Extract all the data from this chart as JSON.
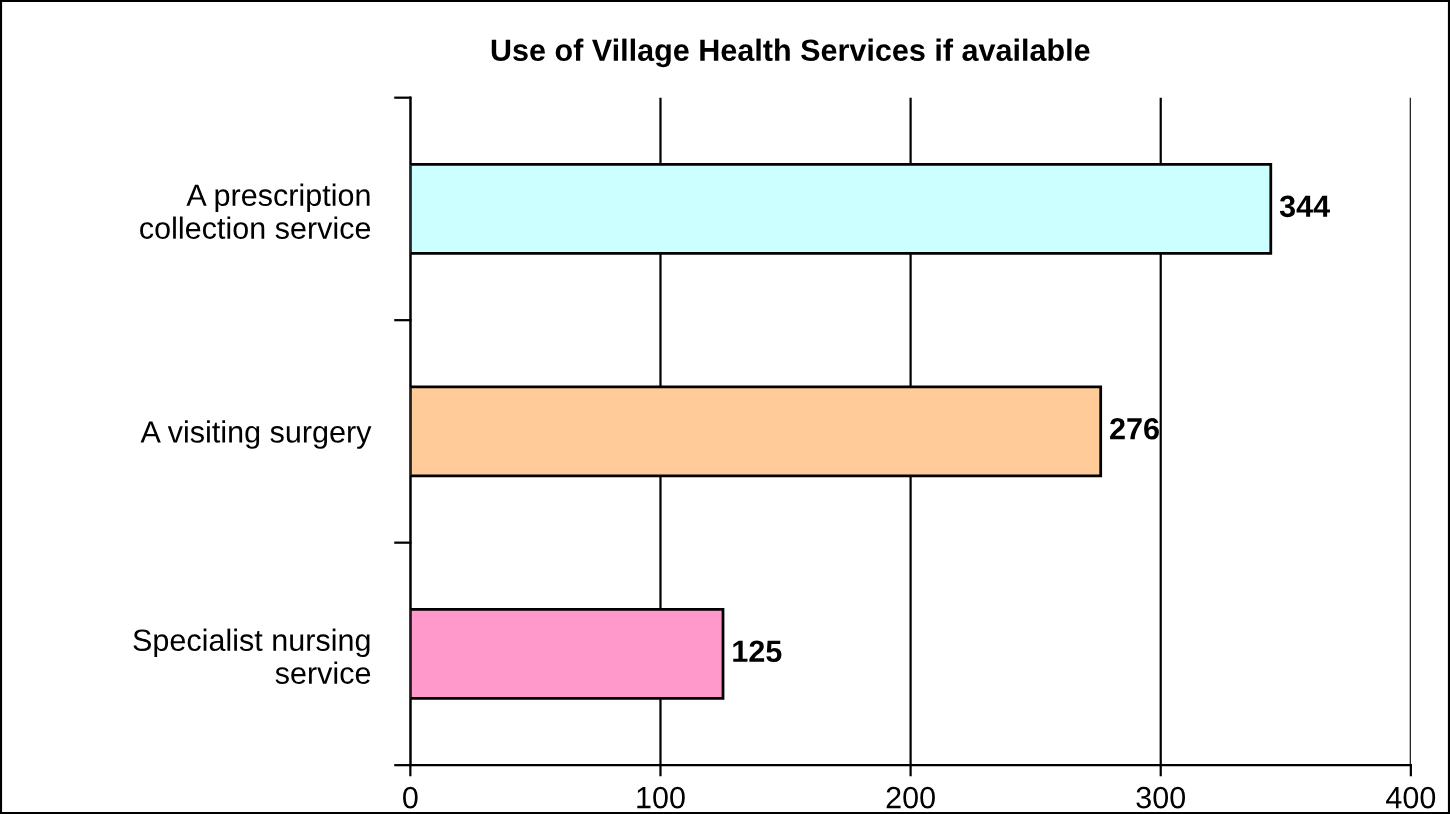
{
  "chart_data": {
    "type": "bar",
    "orientation": "horizontal",
    "title": "Use of Village Health Services if available",
    "categories": [
      "A prescription\ncollection service",
      "A visiting surgery",
      "Specialist nursing\nservice"
    ],
    "values": [
      344,
      276,
      125
    ],
    "colors": [
      "#ccffff",
      "#ffcc99",
      "#ff99cc"
    ],
    "xlim": [
      0,
      400
    ],
    "xticks": [
      0,
      100,
      200,
      300,
      400
    ],
    "grid": "x",
    "data_labels": true,
    "legend": false
  }
}
